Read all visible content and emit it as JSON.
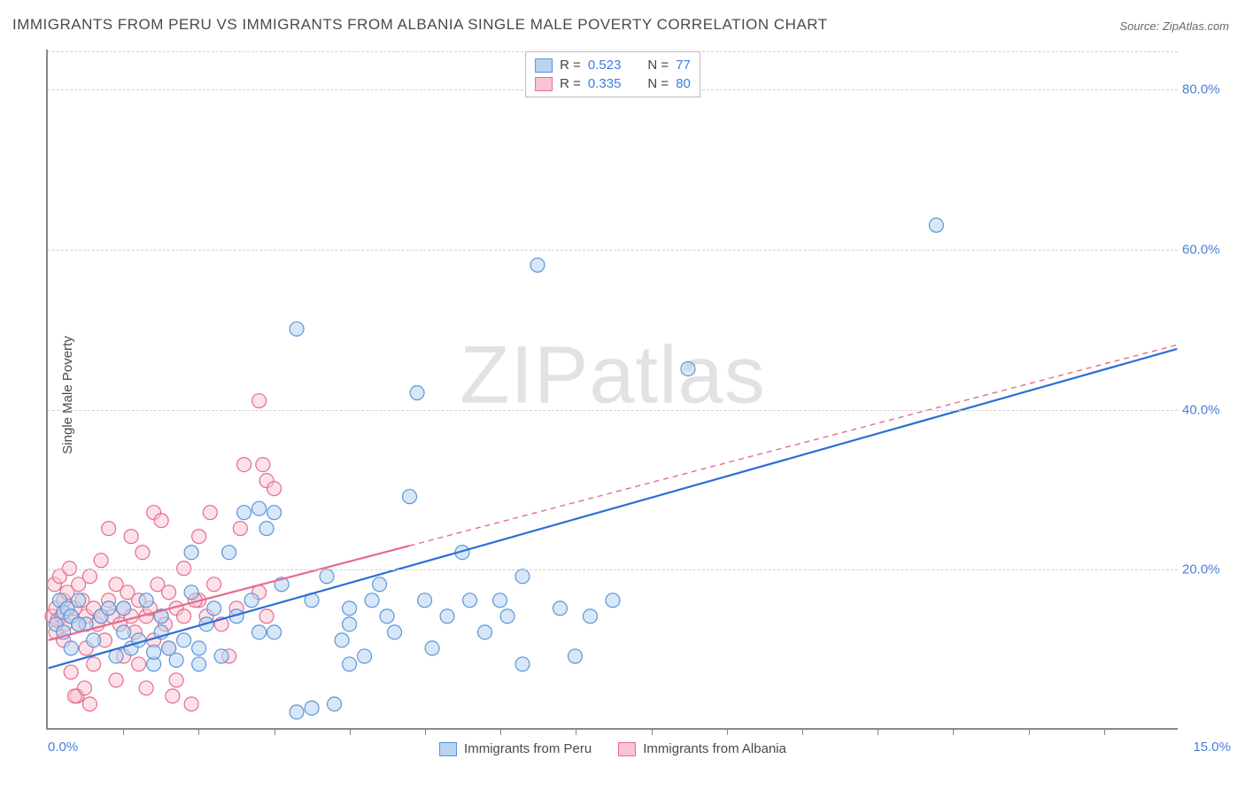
{
  "title": "IMMIGRANTS FROM PERU VS IMMIGRANTS FROM ALBANIA SINGLE MALE POVERTY CORRELATION CHART",
  "source": "Source: ZipAtlas.com",
  "watermark": "ZIPatlas",
  "ylabel": "Single Male Poverty",
  "chart": {
    "type": "scatter",
    "xlim": [
      0,
      15
    ],
    "ylim": [
      0,
      85
    ],
    "x_ticks_minor": [
      1,
      2,
      3,
      4,
      5,
      6,
      7,
      8,
      9,
      10,
      11,
      12,
      13,
      14
    ],
    "x_tick_labels": {
      "0": "0.0%",
      "15": "15.0%"
    },
    "y_ticks": [
      20,
      40,
      60,
      80
    ],
    "y_tick_labels": [
      "20.0%",
      "40.0%",
      "60.0%",
      "80.0%"
    ],
    "grid_color": "#d0d0d0",
    "axis_color": "#888888",
    "background_color": "#ffffff",
    "marker_radius": 8,
    "marker_stroke_width": 1.2,
    "line_width": 2.2,
    "series": [
      {
        "name": "Immigrants from Peru",
        "label": "Immigrants from Peru",
        "fill": "#b8d4f0",
        "stroke": "#5a95d8",
        "line_color": "#2a6fd6",
        "fill_opacity": 0.55,
        "R": "0.523",
        "N": "77",
        "trend": {
          "x1": 0,
          "y1": 7.5,
          "x2": 15,
          "y2": 47.5,
          "dashed_from_x": null
        },
        "points": [
          [
            0.1,
            13
          ],
          [
            0.15,
            16
          ],
          [
            0.2,
            14.5
          ],
          [
            0.2,
            12
          ],
          [
            0.25,
            15
          ],
          [
            0.3,
            14
          ],
          [
            0.3,
            10
          ],
          [
            0.4,
            16
          ],
          [
            0.5,
            13
          ],
          [
            0.6,
            11
          ],
          [
            0.7,
            14
          ],
          [
            0.8,
            15
          ],
          [
            0.9,
            9
          ],
          [
            1.0,
            12
          ],
          [
            1.0,
            15
          ],
          [
            1.1,
            10
          ],
          [
            1.2,
            11
          ],
          [
            1.3,
            16
          ],
          [
            1.4,
            8
          ],
          [
            1.4,
            9.5
          ],
          [
            1.5,
            12
          ],
          [
            1.5,
            14
          ],
          [
            1.6,
            10
          ],
          [
            1.7,
            8.5
          ],
          [
            1.8,
            11
          ],
          [
            1.9,
            22
          ],
          [
            2.0,
            10
          ],
          [
            2.0,
            8
          ],
          [
            2.1,
            13
          ],
          [
            2.2,
            15
          ],
          [
            2.3,
            9
          ],
          [
            2.4,
            22
          ],
          [
            2.5,
            14
          ],
          [
            2.6,
            27
          ],
          [
            2.7,
            16
          ],
          [
            2.8,
            27.5
          ],
          [
            2.9,
            25
          ],
          [
            3.0,
            12
          ],
          [
            3.0,
            27
          ],
          [
            3.1,
            18
          ],
          [
            3.3,
            50
          ],
          [
            3.3,
            2
          ],
          [
            3.5,
            16
          ],
          [
            3.7,
            19
          ],
          [
            3.8,
            3
          ],
          [
            3.9,
            11
          ],
          [
            4.0,
            15
          ],
          [
            4.0,
            13
          ],
          [
            4.2,
            9
          ],
          [
            4.3,
            16
          ],
          [
            4.4,
            18
          ],
          [
            4.5,
            14
          ],
          [
            4.6,
            12
          ],
          [
            4.8,
            29
          ],
          [
            4.9,
            42
          ],
          [
            5.0,
            16
          ],
          [
            5.1,
            10
          ],
          [
            5.3,
            14
          ],
          [
            5.5,
            22
          ],
          [
            5.6,
            16
          ],
          [
            5.8,
            12
          ],
          [
            6.0,
            16
          ],
          [
            6.1,
            14
          ],
          [
            6.3,
            19
          ],
          [
            6.3,
            8
          ],
          [
            6.5,
            58
          ],
          [
            6.8,
            15
          ],
          [
            7.0,
            9
          ],
          [
            7.2,
            14
          ],
          [
            8.5,
            45
          ],
          [
            11.8,
            63
          ],
          [
            7.5,
            16
          ],
          [
            4.0,
            8
          ],
          [
            3.5,
            2.5
          ],
          [
            2.8,
            12
          ],
          [
            1.9,
            17
          ],
          [
            0.4,
            13
          ]
        ]
      },
      {
        "name": "Immigrants from Albania",
        "label": "Immigrants from Albania",
        "fill": "#f7c6d2",
        "stroke": "#e76a8d",
        "line_color": "#e76a8d",
        "fill_opacity": 0.5,
        "R": "0.335",
        "N": "80",
        "trend": {
          "x1": 0,
          "y1": 11,
          "x2": 15,
          "y2": 48,
          "dashed_from_x": 4.8
        },
        "points": [
          [
            0.05,
            14
          ],
          [
            0.08,
            18
          ],
          [
            0.1,
            12
          ],
          [
            0.1,
            15
          ],
          [
            0.12,
            13.5
          ],
          [
            0.15,
            19
          ],
          [
            0.18,
            14
          ],
          [
            0.2,
            11
          ],
          [
            0.2,
            16
          ],
          [
            0.22,
            13
          ],
          [
            0.25,
            17
          ],
          [
            0.28,
            20
          ],
          [
            0.3,
            14
          ],
          [
            0.3,
            7
          ],
          [
            0.35,
            15
          ],
          [
            0.38,
            4
          ],
          [
            0.4,
            13
          ],
          [
            0.4,
            18
          ],
          [
            0.45,
            16
          ],
          [
            0.48,
            5
          ],
          [
            0.5,
            14
          ],
          [
            0.5,
            10
          ],
          [
            0.55,
            19
          ],
          [
            0.6,
            15
          ],
          [
            0.6,
            8
          ],
          [
            0.65,
            13
          ],
          [
            0.7,
            14
          ],
          [
            0.7,
            21
          ],
          [
            0.75,
            11
          ],
          [
            0.8,
            16
          ],
          [
            0.8,
            25
          ],
          [
            0.85,
            14
          ],
          [
            0.9,
            18
          ],
          [
            0.9,
            6
          ],
          [
            0.95,
            13
          ],
          [
            1.0,
            15
          ],
          [
            1.0,
            9
          ],
          [
            1.05,
            17
          ],
          [
            1.1,
            14
          ],
          [
            1.1,
            24
          ],
          [
            1.15,
            12
          ],
          [
            1.2,
            16
          ],
          [
            1.2,
            8
          ],
          [
            1.25,
            22
          ],
          [
            1.3,
            14
          ],
          [
            1.3,
            5
          ],
          [
            1.35,
            15
          ],
          [
            1.4,
            27
          ],
          [
            1.4,
            11
          ],
          [
            1.45,
            18
          ],
          [
            1.5,
            14
          ],
          [
            1.5,
            26
          ],
          [
            1.55,
            13
          ],
          [
            1.6,
            17
          ],
          [
            1.6,
            10
          ],
          [
            1.7,
            15
          ],
          [
            1.7,
            6
          ],
          [
            1.8,
            20
          ],
          [
            1.8,
            14
          ],
          [
            1.9,
            3
          ],
          [
            2.0,
            24
          ],
          [
            2.0,
            16
          ],
          [
            2.1,
            14
          ],
          [
            2.2,
            18
          ],
          [
            2.3,
            13
          ],
          [
            2.4,
            9
          ],
          [
            2.5,
            15
          ],
          [
            2.55,
            25
          ],
          [
            2.6,
            33
          ],
          [
            2.8,
            41
          ],
          [
            2.8,
            17
          ],
          [
            2.85,
            33
          ],
          [
            2.9,
            31
          ],
          [
            2.9,
            14
          ],
          [
            3.0,
            30
          ],
          [
            0.35,
            4
          ],
          [
            0.55,
            3
          ],
          [
            1.65,
            4
          ],
          [
            2.15,
            27
          ],
          [
            1.95,
            16
          ]
        ]
      }
    ]
  },
  "legend_top": {
    "r_label": "R =",
    "n_label": "N ="
  },
  "legend_bottom": {}
}
